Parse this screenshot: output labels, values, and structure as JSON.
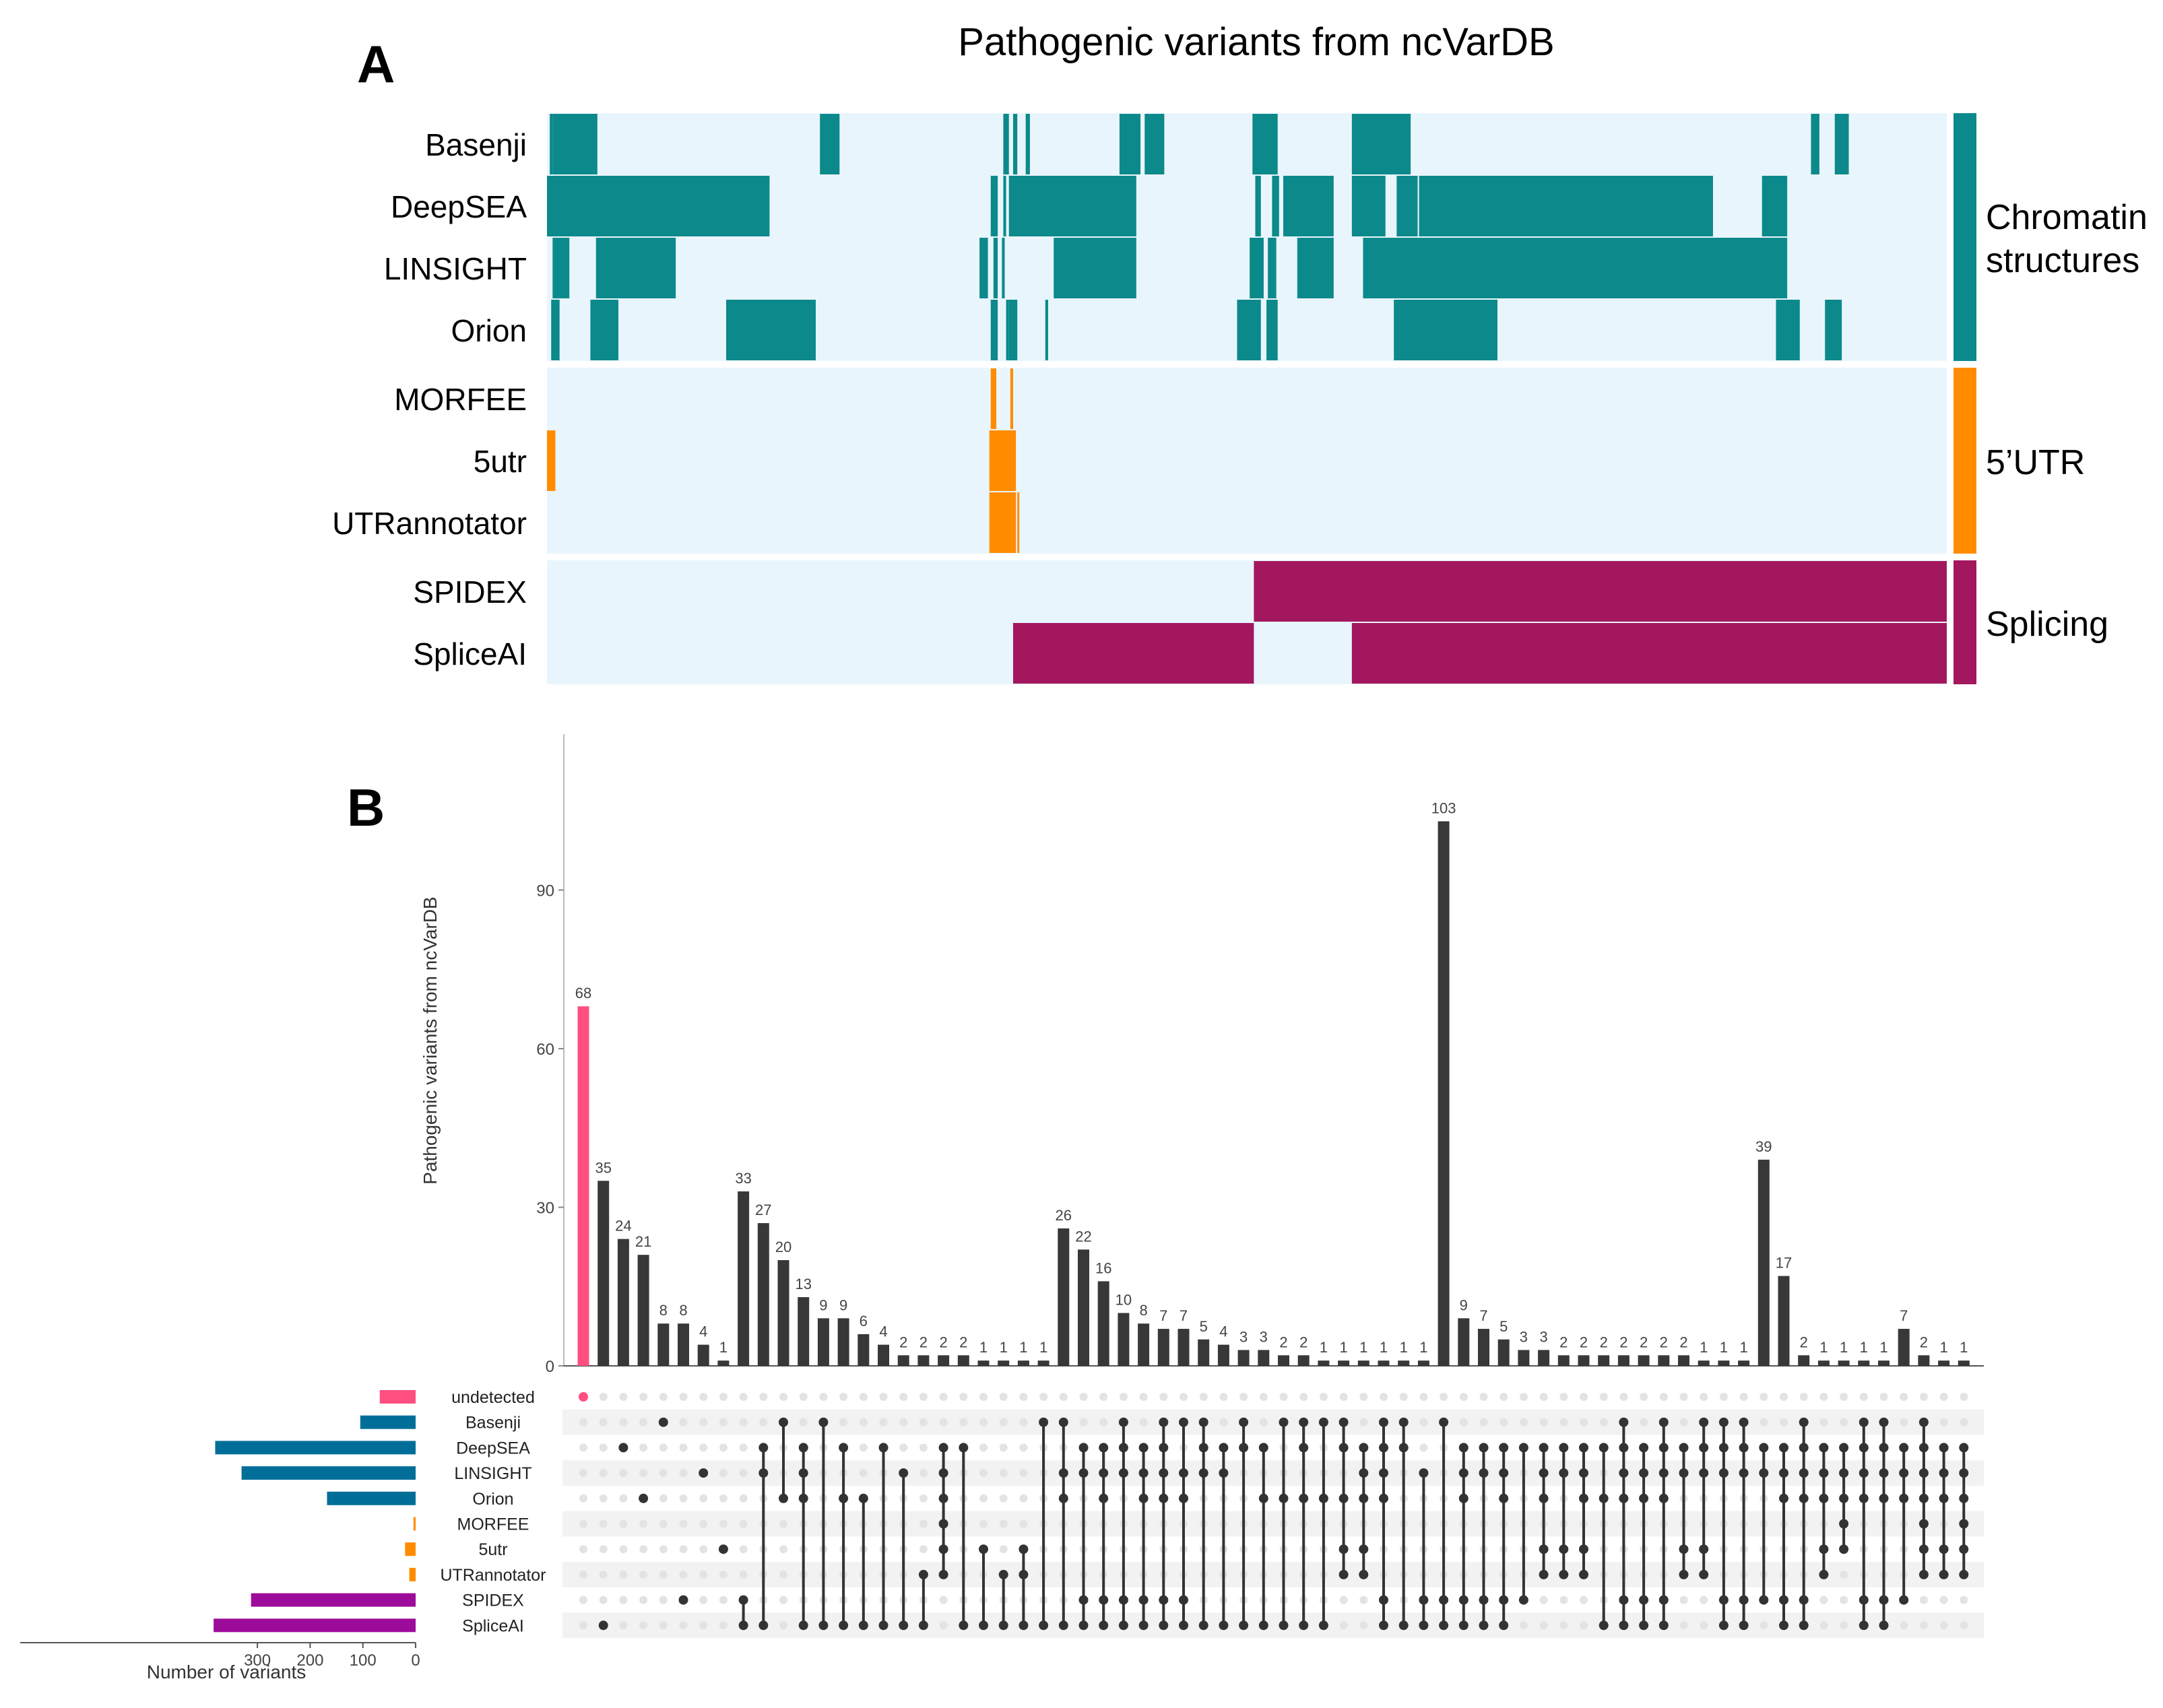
{
  "colors": {
    "background_cell": "#e9f5fc",
    "chromatin": "#0c898b",
    "utr": "#ff8c00",
    "splicing": "#a3175f",
    "bar_dark": "#383838",
    "bar_undetected": "#ff4f80",
    "set_bar_blue": "#006e98",
    "set_bar_purple": "#9c0b9a",
    "set_bar_orange": "#ff8c00",
    "dot_inactive": "#e3e3e3",
    "stripe": "#f2f2f2"
  },
  "panel_a": {
    "label": "A",
    "title": "Pathogenic variants from ncVarDB",
    "rows": [
      "Basenji",
      "DeepSEA",
      "LINSIGHT",
      "Orion",
      "MORFEE",
      "5utr",
      "UTRannotator",
      "SPIDEX",
      "SpliceAI"
    ],
    "groups": [
      {
        "name_lines": [
          "Chromatin",
          "structures"
        ],
        "category": "chromatin",
        "rows": [
          "Basenji",
          "DeepSEA",
          "LINSIGHT",
          "Orion"
        ]
      },
      {
        "name_lines": [
          "5’UTR"
        ],
        "category": "utr",
        "rows": [
          "MORFEE",
          "5utr",
          "UTRannotator"
        ]
      },
      {
        "name_lines": [
          "Splicing"
        ],
        "category": "splicing",
        "rows": [
          "SPIDEX",
          "SpliceAI"
        ]
      }
    ]
  },
  "panel_b": {
    "label": "B",
    "ylabel": "Pathogenic variants from ncVarDB",
    "y_ticks": [
      0,
      30,
      60,
      90
    ],
    "set_axis_label": "Number of variants",
    "set_axis_ticks": [
      300,
      200,
      100,
      0
    ]
  },
  "chart_data": [
    {
      "type": "heatmap",
      "title": "Pathogenic variants from ncVarDB",
      "rows": [
        "Basenji",
        "DeepSEA",
        "LINSIGHT",
        "Orion",
        "MORFEE",
        "5utr",
        "UTRannotator",
        "SPIDEX",
        "SpliceAI"
      ],
      "x_domain": [
        0,
        1000
      ],
      "value_meaning": "colored segment = variant detected by tool",
      "detected_segments": {
        "Basenji": [
          [
            2,
            4
          ],
          [
            4,
            36
          ],
          [
            195,
            209
          ],
          [
            326,
            330
          ],
          [
            333,
            336
          ],
          [
            342,
            345
          ],
          [
            409,
            424
          ],
          [
            427,
            441
          ],
          [
            504,
            522
          ],
          [
            575,
            617
          ],
          [
            903,
            909
          ],
          [
            920,
            930
          ]
        ],
        "DeepSEA": [
          [
            0,
            159
          ],
          [
            317,
            322
          ],
          [
            326,
            328
          ],
          [
            330,
            421
          ],
          [
            506,
            510
          ],
          [
            518,
            523
          ],
          [
            526,
            562
          ],
          [
            575,
            599
          ],
          [
            607,
            622
          ],
          [
            623,
            833
          ],
          [
            868,
            886
          ]
        ],
        "LINSIGHT": [
          [
            4,
            16
          ],
          [
            35,
            92
          ],
          [
            309,
            315
          ],
          [
            319,
            322
          ],
          [
            325,
            327
          ],
          [
            362,
            421
          ],
          [
            502,
            512
          ],
          [
            515,
            521
          ],
          [
            536,
            562
          ],
          [
            583,
            886
          ]
        ],
        "Orion": [
          [
            3,
            9
          ],
          [
            31,
            51
          ],
          [
            128,
            192
          ],
          [
            317,
            322
          ],
          [
            328,
            330
          ],
          [
            330,
            336
          ],
          [
            356,
            358
          ],
          [
            493,
            510
          ],
          [
            514,
            522
          ],
          [
            605,
            679
          ],
          [
            878,
            895
          ],
          [
            913,
            925
          ]
        ],
        "MORFEE": [
          [
            317,
            321
          ],
          [
            331,
            333
          ]
        ],
        "5utr": [
          [
            0,
            6
          ],
          [
            316,
            335
          ]
        ],
        "UTRannotator": [
          [
            316,
            335
          ],
          [
            336,
            337
          ]
        ],
        "SPIDEX": [
          [
            505,
            1000
          ]
        ],
        "SpliceAI": [
          [
            333,
            505
          ],
          [
            575,
            1000
          ]
        ]
      }
    },
    {
      "type": "bar",
      "title": "",
      "ylabel": "Pathogenic variants from ncVarDB",
      "ylim": [
        0,
        110
      ],
      "y_ticks": [
        0,
        30,
        60,
        90
      ],
      "sets": [
        "undetected",
        "Basenji",
        "DeepSEA",
        "LINSIGHT",
        "Orion",
        "MORFEE",
        "5utr",
        "UTRannotator",
        "SPIDEX",
        "SpliceAI"
      ],
      "set_colors": {
        "undetected": "#ff4f80",
        "Basenji": "#006e98",
        "DeepSEA": "#006e98",
        "LINSIGHT": "#006e98",
        "Orion": "#006e98",
        "MORFEE": "#ff8c00",
        "5utr": "#ff8c00",
        "UTRannotator": "#ff8c00",
        "SPIDEX": "#9c0b9a",
        "SpliceAI": "#9c0b9a"
      },
      "set_sizes": {
        "undetected": 68,
        "Basenji": 105,
        "DeepSEA": 380,
        "LINSIGHT": 330,
        "Orion": 168,
        "MORFEE": 4,
        "5utr": 20,
        "UTRannotator": 12,
        "SPIDEX": 312,
        "SpliceAI": 383
      },
      "set_size_xlim": [
        400,
        0
      ],
      "values": [
        68,
        35,
        24,
        21,
        8,
        8,
        4,
        1,
        33,
        27,
        20,
        13,
        9,
        9,
        6,
        4,
        2,
        2,
        2,
        2,
        1,
        1,
        1,
        1,
        26,
        22,
        16,
        10,
        8,
        7,
        7,
        5,
        4,
        3,
        3,
        2,
        2,
        1,
        1,
        1,
        1,
        1,
        1,
        103,
        9,
        7,
        5,
        3,
        3,
        2,
        2,
        2,
        2,
        2,
        2,
        2,
        1,
        1,
        1,
        39,
        17,
        2,
        1,
        1,
        1,
        1,
        7,
        2,
        1,
        1
      ],
      "intersections": [
        [
          0
        ],
        [
          9
        ],
        [
          2
        ],
        [
          4
        ],
        [
          1
        ],
        [
          8
        ],
        [
          3
        ],
        [
          6
        ],
        [
          8,
          9
        ],
        [
          2,
          3,
          9
        ],
        [
          1,
          4
        ],
        [
          2,
          3,
          4,
          9
        ],
        [
          1,
          9
        ],
        [
          2,
          4,
          9
        ],
        [
          4,
          9
        ],
        [
          2,
          9
        ],
        [
          3,
          9
        ],
        [
          7,
          9
        ],
        [
          2,
          3,
          4,
          5,
          6,
          7
        ],
        [
          2,
          9
        ],
        [
          6,
          9
        ],
        [
          7,
          9
        ],
        [
          6,
          7,
          9
        ],
        [
          1,
          9
        ],
        [
          1,
          3,
          4,
          9
        ],
        [
          2,
          3,
          8,
          9
        ],
        [
          2,
          3,
          4,
          8,
          9
        ],
        [
          1,
          2,
          3,
          8,
          9
        ],
        [
          2,
          3,
          4,
          8,
          9
        ],
        [
          1,
          2,
          3,
          4,
          8,
          9
        ],
        [
          1,
          3,
          4,
          8,
          9
        ],
        [
          1,
          2,
          3,
          9
        ],
        [
          2,
          3,
          9
        ],
        [
          1,
          2,
          9
        ],
        [
          2,
          4,
          9
        ],
        [
          1,
          4,
          9
        ],
        [
          1,
          2,
          4,
          9
        ],
        [
          1,
          4,
          9
        ],
        [
          1,
          2,
          4,
          6,
          7
        ],
        [
          2,
          3,
          4,
          6,
          7
        ],
        [
          1,
          2,
          3,
          4,
          8,
          9
        ],
        [
          1,
          2,
          9
        ],
        [
          3,
          8,
          9
        ],
        [
          1,
          8,
          9
        ],
        [
          2,
          3,
          4,
          8,
          9
        ],
        [
          2,
          3,
          8,
          9
        ],
        [
          2,
          3,
          4,
          8,
          9
        ],
        [
          2,
          8
        ],
        [
          2,
          3,
          4,
          6,
          7
        ],
        [
          2,
          3,
          6,
          7
        ],
        [
          2,
          3,
          4,
          6,
          7
        ],
        [
          2,
          4,
          9
        ],
        [
          1,
          2,
          3,
          4,
          8,
          9
        ],
        [
          2,
          3,
          4,
          8,
          9
        ],
        [
          1,
          2,
          3,
          4,
          8,
          9
        ],
        [
          2,
          3,
          6,
          7
        ],
        [
          1,
          2,
          3,
          6,
          7
        ],
        [
          1,
          2,
          3,
          8,
          9
        ],
        [
          1,
          2,
          3,
          8,
          9
        ],
        [
          2,
          3,
          8
        ],
        [
          2,
          3,
          4,
          8,
          9
        ],
        [
          1,
          2,
          3,
          4,
          8,
          9
        ],
        [
          2,
          3,
          4,
          6,
          7
        ],
        [
          2,
          3,
          4,
          5,
          6
        ],
        [
          1,
          2,
          3,
          4,
          8,
          9
        ],
        [
          1,
          2,
          3,
          4,
          8,
          9
        ],
        [
          2,
          3,
          4,
          8
        ],
        [
          1,
          2,
          3,
          4,
          5,
          6,
          7
        ],
        [
          2,
          3,
          4,
          6,
          7
        ],
        [
          2,
          3,
          4,
          5,
          6,
          7
        ]
      ]
    }
  ]
}
